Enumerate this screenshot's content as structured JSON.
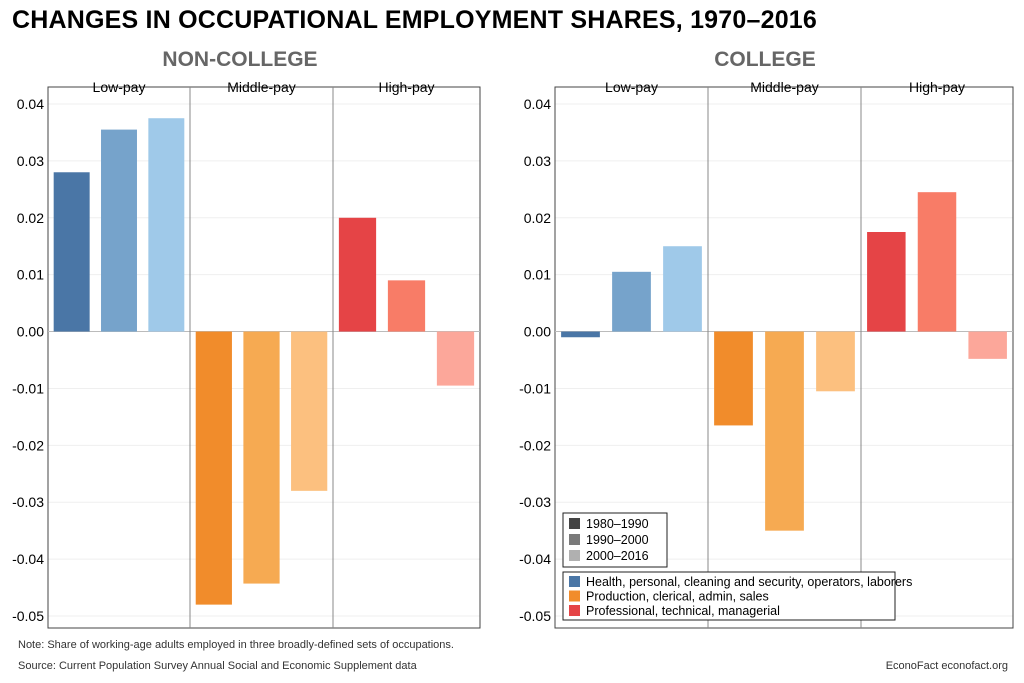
{
  "title": "CHANGES IN OCCUPATIONAL EMPLOYMENT SHARES, 1970–2016",
  "note": "Note: Share of working-age adults employed in three broadly-defined sets of occupations.",
  "source": "Source: Current Population Survey Annual Social and Economic Supplement data",
  "brand": "EconoFact  econofact.org",
  "colors": {
    "Low-pay": [
      "#4a76a6",
      "#76a3cb",
      "#9fc9e9"
    ],
    "Middle-pay": [
      "#f18c2b",
      "#f6aa52",
      "#fcc07f"
    ],
    "High-pay": [
      "#e54446",
      "#f87c67",
      "#fca79a"
    ]
  },
  "chart_data": [
    {
      "type": "bar",
      "title": "NON-COLLEGE",
      "groups": [
        "Low-pay",
        "Middle-pay",
        "High-pay"
      ],
      "periods": [
        "1980–1990",
        "1990–2000",
        "2000–2016"
      ],
      "values": [
        [
          0.028,
          0.0355,
          0.0375
        ],
        [
          -0.048,
          -0.0443,
          -0.028
        ],
        [
          0.02,
          0.009,
          -0.0095
        ]
      ],
      "ylim": [
        -0.05,
        0.04
      ],
      "yticks": [
        "0.04",
        "0.03",
        "0.02",
        "0.01",
        "0.00",
        "-0.01",
        "-0.02",
        "-0.03",
        "-0.04",
        "-0.05"
      ]
    },
    {
      "type": "bar",
      "title": "COLLEGE",
      "groups": [
        "Low-pay",
        "Middle-pay",
        "High-pay"
      ],
      "periods": [
        "1980–1990",
        "1990–2000",
        "2000–2016"
      ],
      "values": [
        [
          -0.001,
          0.0105,
          0.015
        ],
        [
          -0.0165,
          -0.035,
          -0.0105
        ],
        [
          0.0175,
          0.0245,
          -0.0048
        ]
      ],
      "ylim": [
        -0.05,
        0.04
      ],
      "yticks": [
        "0.04",
        "0.03",
        "0.02",
        "0.01",
        "0.00",
        "-0.01",
        "-0.02",
        "-0.03",
        "-0.04",
        "-0.05"
      ]
    }
  ],
  "legend": {
    "periods": [
      {
        "label": "1980–1990",
        "color": "#444444"
      },
      {
        "label": "1990–2000",
        "color": "#7a7a7a"
      },
      {
        "label": "2000–2016",
        "color": "#b0b0b0"
      }
    ],
    "groups": [
      {
        "label": "Health, personal, cleaning and security, operators, laborers",
        "color": "#4a76a6"
      },
      {
        "label": "Production, clerical, admin, sales",
        "color": "#f18c2b"
      },
      {
        "label": "Professional, technical, managerial",
        "color": "#e54446"
      }
    ]
  }
}
